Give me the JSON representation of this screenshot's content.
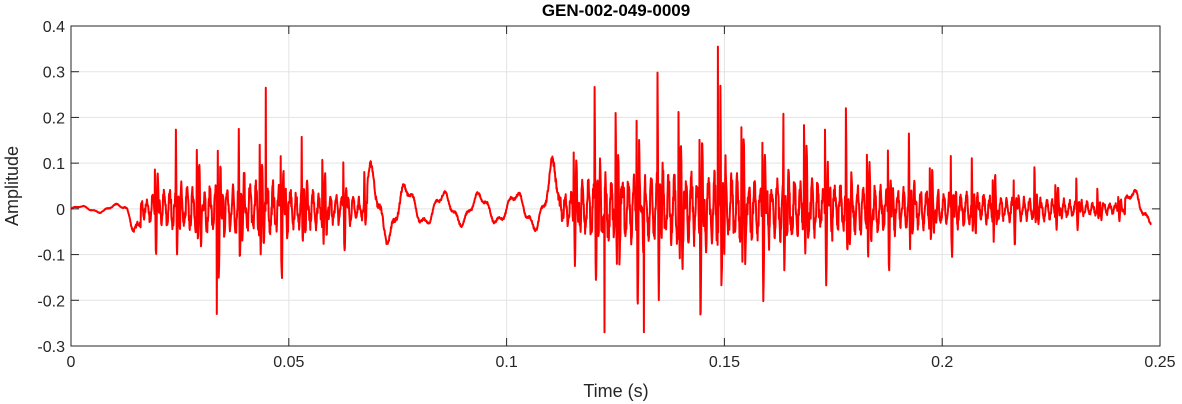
{
  "chart_data": {
    "type": "line",
    "title": "GEN-002-049-0009",
    "xlabel": "Time (s)",
    "ylabel": "Amplitude",
    "xlim": [
      0,
      0.25
    ],
    "ylim": [
      -0.3,
      0.4
    ],
    "grid": true,
    "legend": "none",
    "x_ticks": [
      0,
      0.05,
      0.1,
      0.15,
      0.2,
      0.25
    ],
    "x_tick_labels": [
      "0",
      "0.05",
      "0.1",
      "0.15",
      "0.2",
      "0.25"
    ],
    "y_ticks": [
      -0.3,
      -0.2,
      -0.1,
      0,
      0.1,
      0.2,
      0.3,
      0.4
    ],
    "y_tick_labels": [
      "-0.3",
      "-0.2",
      "-0.1",
      "0",
      "0.1",
      "0.2",
      "0.3",
      "0.4"
    ],
    "series": [
      {
        "color": "#ff0000",
        "x_start": 0.0,
        "x_end": 0.248,
        "envelope_t": [
          0.0,
          0.012,
          0.016,
          0.02,
          0.03,
          0.045,
          0.06,
          0.068,
          0.08,
          0.1,
          0.108,
          0.113,
          0.12,
          0.135,
          0.148,
          0.17,
          0.2,
          0.22,
          0.235,
          0.248
        ],
        "envelope_amp": [
          0.005,
          0.01,
          0.07,
          0.17,
          0.21,
          0.25,
          0.16,
          0.09,
          0.035,
          0.03,
          0.045,
          0.15,
          0.3,
          0.32,
          0.34,
          0.26,
          0.17,
          0.11,
          0.06,
          0.03
        ],
        "peaks": [
          {
            "x": 0.0447,
            "y": 0.265
          },
          {
            "x": 0.0335,
            "y": -0.23
          },
          {
            "x": 0.1485,
            "y": 0.355
          },
          {
            "x": 0.1225,
            "y": -0.27
          },
          {
            "x": 0.1315,
            "y": -0.27
          }
        ]
      }
    ]
  }
}
